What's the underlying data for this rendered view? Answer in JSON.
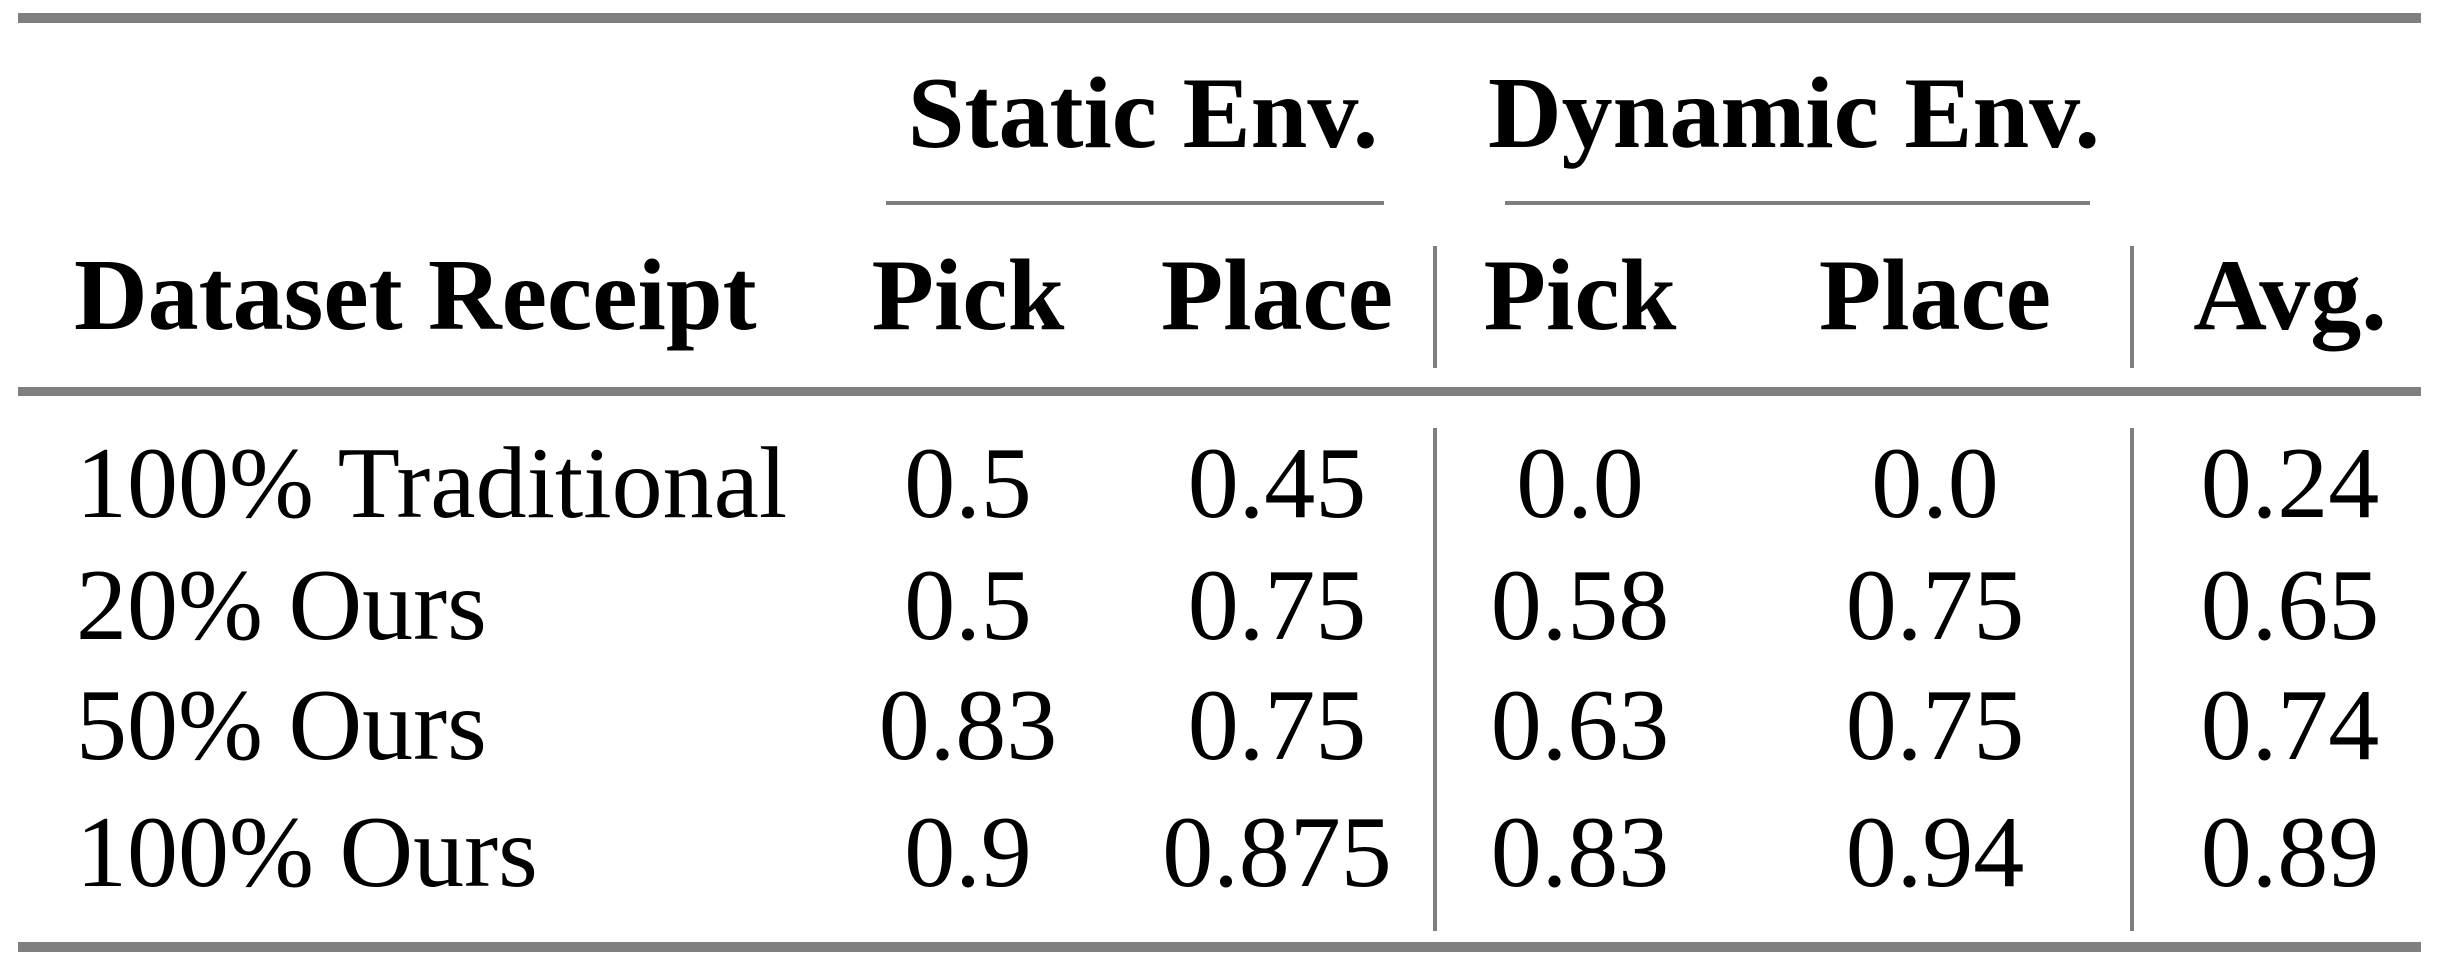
{
  "table": {
    "groups": [
      {
        "label": "Static Env."
      },
      {
        "label": "Dynamic Env."
      }
    ],
    "headers": [
      "Dataset Receipt",
      "Pick",
      "Place",
      "Pick",
      "Place",
      "Avg."
    ],
    "rows": [
      {
        "cells": [
          "100% Traditional",
          "0.5",
          "0.45",
          "0.0",
          "0.0",
          "0.24"
        ]
      },
      {
        "cells": [
          "20% Ours",
          "0.5",
          "0.75",
          "0.58",
          "0.75",
          "0.65"
        ]
      },
      {
        "cells": [
          "50% Ours",
          "0.83",
          "0.75",
          "0.63",
          "0.75",
          "0.74"
        ]
      },
      {
        "cells": [
          "100% Ours",
          "0.9",
          "0.875",
          "0.83",
          "0.94",
          "0.89"
        ]
      }
    ]
  },
  "colors": {
    "rule": "#7f7f7f",
    "text": "#000000",
    "background": "#ffffff"
  },
  "chart_data": {
    "type": "table",
    "column_groups": [
      {
        "label": "Static Env.",
        "columns": [
          "Pick",
          "Place"
        ]
      },
      {
        "label": "Dynamic Env.",
        "columns": [
          "Pick",
          "Place"
        ]
      }
    ],
    "columns": [
      "Dataset Receipt",
      "Static Env. Pick",
      "Static Env. Place",
      "Dynamic Env. Pick",
      "Dynamic Env. Place",
      "Avg."
    ],
    "rows": [
      [
        "100% Traditional",
        0.5,
        0.45,
        0.0,
        0.0,
        0.24
      ],
      [
        "20% Ours",
        0.5,
        0.75,
        0.58,
        0.75,
        0.65
      ],
      [
        "50% Ours",
        0.83,
        0.75,
        0.63,
        0.75,
        0.74
      ],
      [
        "100% Ours",
        0.9,
        0.875,
        0.83,
        0.94,
        0.89
      ]
    ]
  }
}
